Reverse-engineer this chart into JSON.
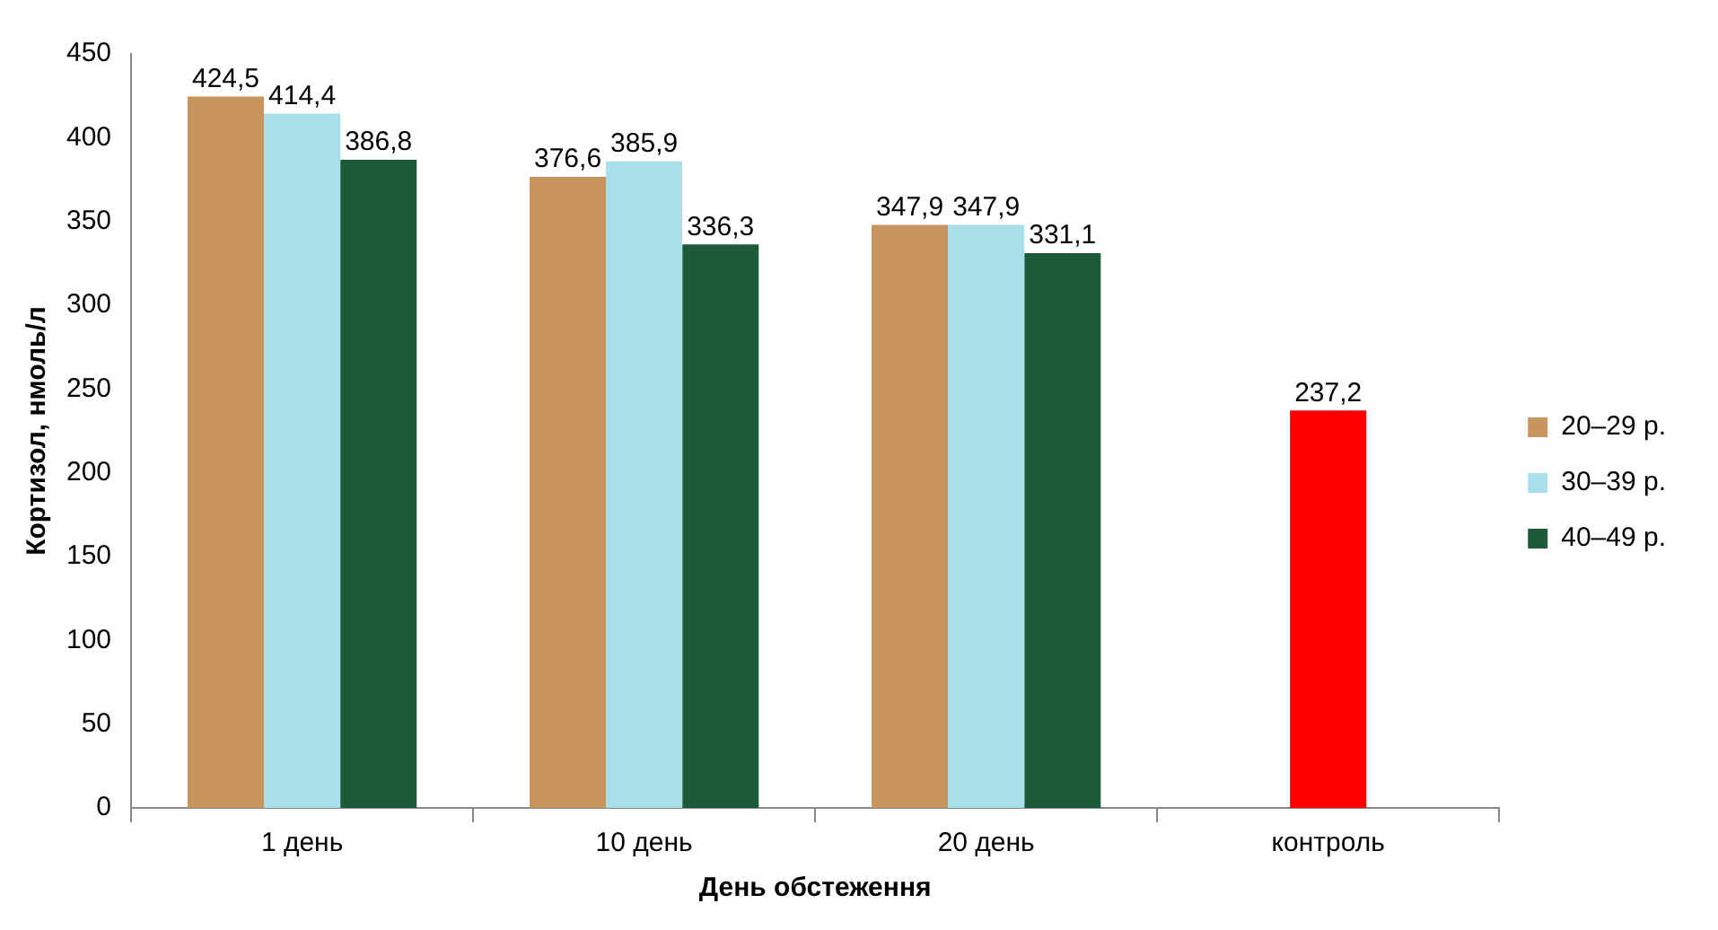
{
  "chart_data": {
    "type": "bar",
    "xlabel": "День обстеження",
    "ylabel": "Кортизол, нмоль/л",
    "categories": [
      "1 день",
      "10 день",
      "20 день",
      "контроль"
    ],
    "ylim": [
      0,
      450
    ],
    "yticks": [
      0,
      50,
      100,
      150,
      200,
      250,
      300,
      350,
      400,
      450
    ],
    "legend": "right",
    "series": [
      {
        "name": "20–29 р.",
        "color": "#c8955e",
        "values": [
          424.5,
          376.6,
          347.9,
          null
        ],
        "value_labels": [
          "424,5",
          "376,6",
          "347,9",
          null
        ]
      },
      {
        "name": "30–39 р.",
        "color": "#a9dfea",
        "colors": [
          "#a9dfea",
          "#a9dfea",
          "#a9dfea",
          "#ff0000"
        ],
        "values": [
          414.4,
          385.9,
          347.9,
          237.2
        ],
        "value_labels": [
          "414,4",
          "385,9",
          "347,9",
          "237,2"
        ]
      },
      {
        "name": "40–49 р.",
        "color": "#1d5a3a",
        "values": [
          386.8,
          336.3,
          331.1,
          null
        ],
        "value_labels": [
          "386,8",
          "336,3",
          "331,1",
          null
        ]
      }
    ]
  }
}
